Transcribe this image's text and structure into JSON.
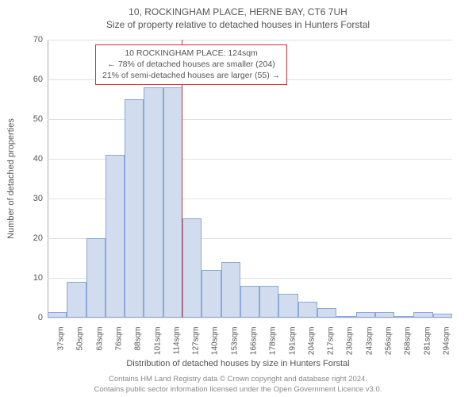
{
  "titles": {
    "main": "10, ROCKINGHAM PLACE, HERNE BAY, CT6 7UH",
    "sub": "Size of property relative to detached houses in Hunters Forstal"
  },
  "axes": {
    "y_label": "Number of detached properties",
    "x_label": "Distribution of detached houses by size in Hunters Forstal",
    "ymax": 70,
    "ytick_step": 10,
    "yticks": [
      0,
      10,
      20,
      30,
      40,
      50,
      60,
      70
    ],
    "grid_color": "#e0e0e0"
  },
  "chart": {
    "type": "histogram",
    "bar_fill": "#d1dcef",
    "bar_stroke": "#8aa8d8",
    "background": "#ffffff",
    "bins": [
      {
        "label": "37sqm",
        "value": 1.5
      },
      {
        "label": "50sqm",
        "value": 9
      },
      {
        "label": "63sqm",
        "value": 20
      },
      {
        "label": "76sqm",
        "value": 41
      },
      {
        "label": "88sqm",
        "value": 55
      },
      {
        "label": "101sqm",
        "value": 58
      },
      {
        "label": "114sqm",
        "value": 58
      },
      {
        "label": "127sqm",
        "value": 25
      },
      {
        "label": "140sqm",
        "value": 12
      },
      {
        "label": "153sqm",
        "value": 14
      },
      {
        "label": "166sqm",
        "value": 8
      },
      {
        "label": "178sqm",
        "value": 8
      },
      {
        "label": "191sqm",
        "value": 6
      },
      {
        "label": "204sqm",
        "value": 4
      },
      {
        "label": "217sqm",
        "value": 2.5
      },
      {
        "label": "230sqm",
        "value": 0.5
      },
      {
        "label": "243sqm",
        "value": 1.5
      },
      {
        "label": "256sqm",
        "value": 1.5
      },
      {
        "label": "268sqm",
        "value": 0.5
      },
      {
        "label": "281sqm",
        "value": 1.5
      },
      {
        "label": "294sqm",
        "value": 1
      }
    ]
  },
  "marker": {
    "at_value_sqm": 124,
    "range_min": 37,
    "range_max": 300,
    "line_color": "#cc3333",
    "box_border": "#cc3333",
    "box_bg": "#ffffff",
    "line1": "10 ROCKINGHAM PLACE: 124sqm",
    "line2": "← 78% of detached houses are smaller (204)",
    "line3": "21% of semi-detached houses are larger (55) →"
  },
  "attribution": {
    "line1": "Contains HM Land Registry data © Crown copyright and database right 2024.",
    "line2": "Contains public sector information licensed under the Open Government Licence v3.0."
  },
  "typography": {
    "title_fontsize": 12,
    "label_fontsize": 11,
    "tick_fontsize": 10,
    "attribution_fontsize": 9.5
  }
}
